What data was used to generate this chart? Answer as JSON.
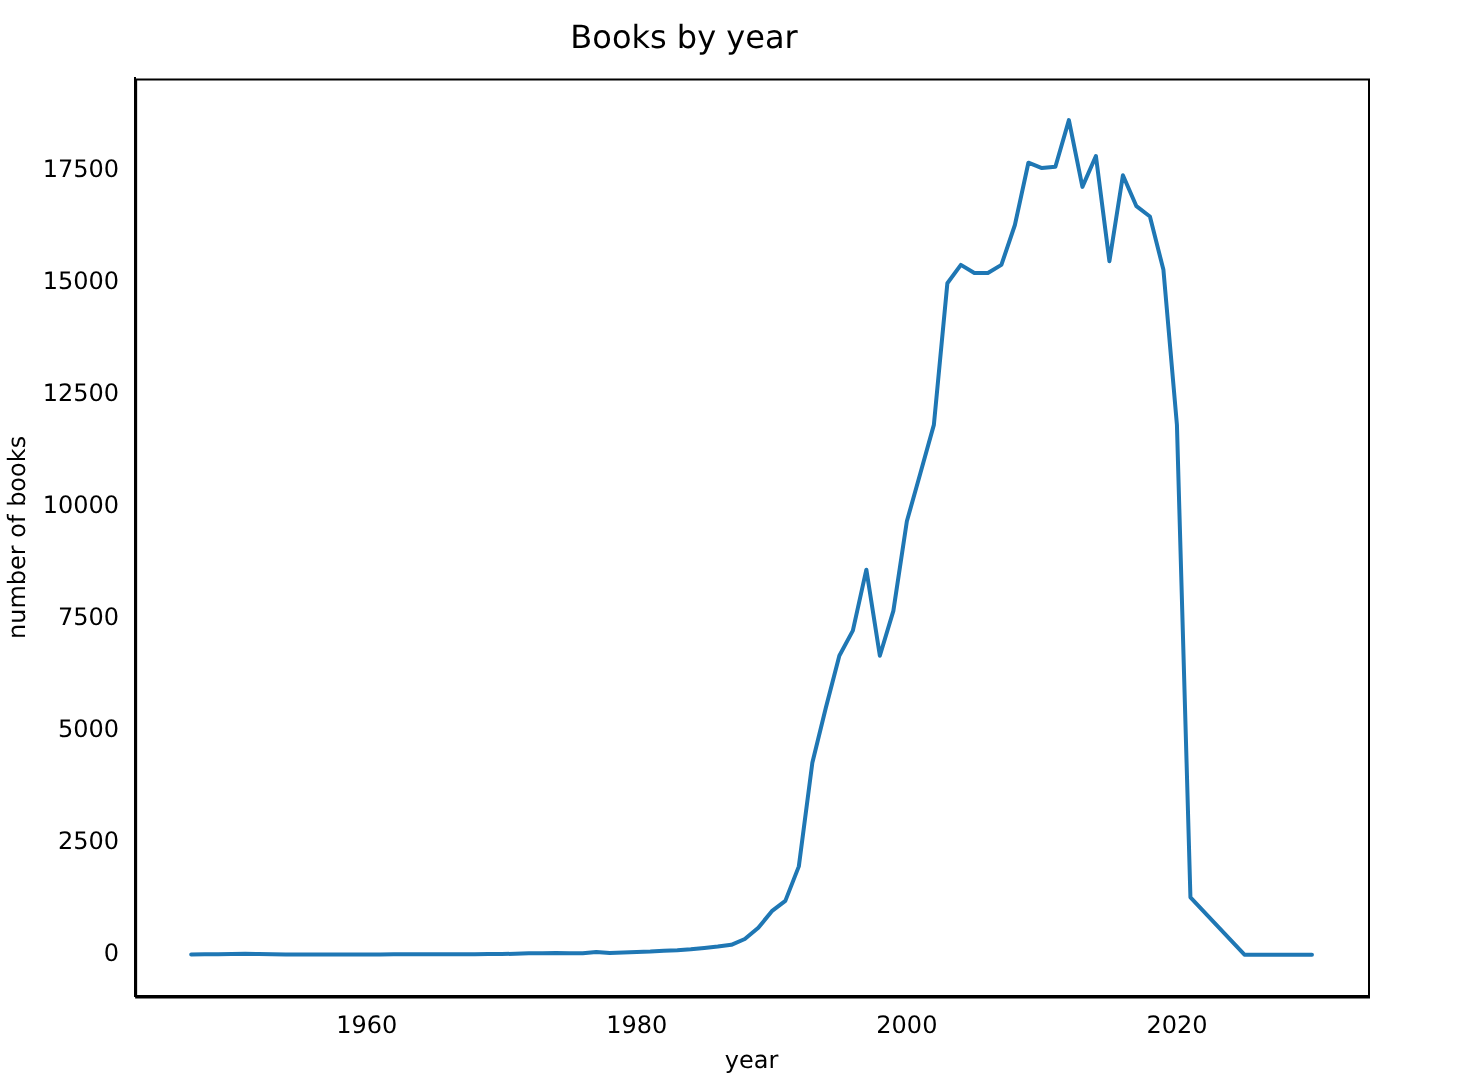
{
  "chart_data": {
    "type": "line",
    "title": "Books by year",
    "xlabel": "year",
    "ylabel": "number of books",
    "x": [
      1947,
      1948,
      1949,
      1950,
      1951,
      1952,
      1953,
      1954,
      1955,
      1956,
      1957,
      1958,
      1959,
      1960,
      1961,
      1962,
      1963,
      1964,
      1965,
      1966,
      1967,
      1968,
      1969,
      1970,
      1971,
      1972,
      1973,
      1974,
      1975,
      1976,
      1977,
      1978,
      1979,
      1980,
      1981,
      1982,
      1983,
      1984,
      1985,
      1986,
      1987,
      1988,
      1989,
      1990,
      1991,
      1992,
      1993,
      1994,
      1995,
      1996,
      1997,
      1998,
      1999,
      2000,
      2001,
      2002,
      2003,
      2004,
      2005,
      2006,
      2007,
      2008,
      2009,
      2010,
      2011,
      2012,
      2013,
      2014,
      2015,
      2016,
      2017,
      2018,
      2019,
      2020,
      2021,
      2025,
      2030
    ],
    "series": [
      {
        "color": "#1f77b4",
        "values": [
          5,
          10,
          10,
          15,
          20,
          15,
          10,
          5,
          5,
          5,
          5,
          5,
          5,
          5,
          5,
          10,
          10,
          10,
          10,
          10,
          10,
          10,
          15,
          15,
          20,
          30,
          30,
          35,
          30,
          30,
          60,
          40,
          50,
          60,
          70,
          90,
          100,
          120,
          150,
          180,
          220,
          350,
          600,
          970,
          1200,
          1970,
          4280,
          5510,
          6670,
          7230,
          8590,
          6670,
          7670,
          9670,
          10740,
          11820,
          14980,
          15390,
          15210,
          15210,
          15390,
          16280,
          17670,
          17550,
          17580,
          18620,
          17130,
          17820,
          15470,
          17390,
          16700,
          16470,
          15280,
          11820,
          1280,
          0,
          0
        ]
      }
    ],
    "xlim": [
      1942.85,
      2034.15
    ],
    "xticks": [
      1960,
      1980,
      2000,
      2020
    ],
    "ylim": [
      -931,
      19551
    ],
    "yticks": [
      0,
      2500,
      5000,
      7500,
      10000,
      12500,
      15000,
      17500
    ],
    "grid": false,
    "legend": false,
    "marker": "none",
    "line_style": "solid"
  }
}
